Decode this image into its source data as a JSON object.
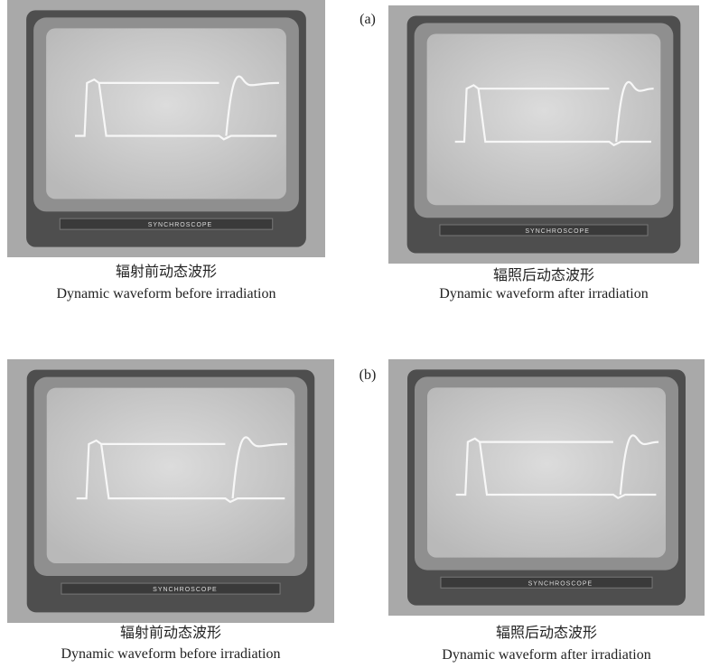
{
  "panels": [
    {
      "label": "(a)",
      "images": [
        {
          "scope_label": "SYNCHROSCOPE",
          "caption_zh": "辐射前动态波形",
          "caption_en": "Dynamic waveform before irradiation"
        },
        {
          "scope_label": "SYNCHROSCOPE",
          "caption_zh": "辐照后动态波形",
          "caption_en": "Dynamic waveform after irradiation"
        }
      ]
    },
    {
      "label": "(b)",
      "images": [
        {
          "scope_label": "SYNCHROSCOPE",
          "caption_zh": "辐射前动态波形",
          "caption_en": "Dynamic waveform before irradiation"
        },
        {
          "scope_label": "SYNCHROSCOPE",
          "caption_zh": "辐照后动态波形",
          "caption_en": "Dynamic waveform after irradiation"
        }
      ]
    }
  ]
}
